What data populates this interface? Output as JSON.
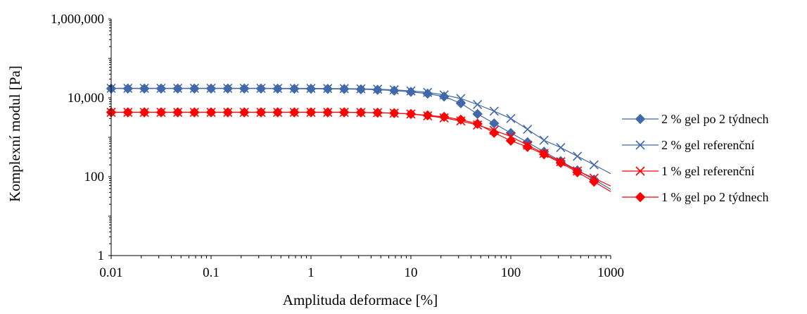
{
  "chart_data": {
    "type": "line",
    "x_scale": "log",
    "y_scale": "log",
    "xlabel": "Amplituda deformace [%]",
    "ylabel": "Komplexní modul [Pa]",
    "xlim": [
      0.01,
      1000
    ],
    "ylim": [
      1,
      1000000
    ],
    "x_ticks": [
      0.01,
      0.1,
      1,
      10,
      100,
      1000
    ],
    "x_tick_labels": [
      "0.01",
      "0.1",
      "1",
      "10",
      "100",
      "1000"
    ],
    "y_ticks": [
      1,
      100,
      10000,
      1000000
    ],
    "y_tick_labels": [
      "1",
      "100",
      "10,000",
      "1,000,000"
    ],
    "grid": false,
    "legend_position": "right",
    "x": [
      0.01,
      0.0147,
      0.0215,
      0.0316,
      0.0464,
      0.0681,
      0.1,
      0.147,
      0.215,
      0.316,
      0.464,
      0.681,
      1,
      1.47,
      2.15,
      3.16,
      4.64,
      6.81,
      10,
      14.7,
      21.5,
      31.6,
      46.4,
      68.1,
      100,
      147,
      215,
      316,
      464,
      681,
      1000
    ],
    "series": [
      {
        "name": "2 % gel po 2 týdnech",
        "color": "#4169aa",
        "marker": "diamond",
        "values": [
          17200,
          17200,
          17200,
          17200,
          17200,
          17200,
          17200,
          17200,
          17200,
          17200,
          17100,
          17000,
          17000,
          16900,
          16800,
          16500,
          16000,
          15300,
          14200,
          12800,
          10800,
          7300,
          3900,
          2250,
          1280,
          750,
          430,
          250,
          145,
          85,
          48
        ]
      },
      {
        "name": "2 % gel referenční",
        "color": "#4169aa",
        "marker": "x",
        "values": [
          17500,
          17500,
          17500,
          17500,
          17500,
          17500,
          17500,
          17500,
          17500,
          17500,
          17400,
          17400,
          17400,
          17300,
          17200,
          17000,
          16600,
          16000,
          15000,
          13800,
          11900,
          9600,
          6800,
          4600,
          3000,
          1590,
          840,
          550,
          330,
          200,
          120
        ]
      },
      {
        "name": "1 % gel referenční",
        "color": "#ff0000",
        "marker": "x",
        "values": [
          4300,
          4300,
          4300,
          4300,
          4300,
          4300,
          4300,
          4300,
          4300,
          4300,
          4300,
          4300,
          4300,
          4300,
          4300,
          4250,
          4200,
          4100,
          3900,
          3500,
          3100,
          2600,
          2050,
          1500,
          1050,
          630,
          390,
          240,
          140,
          92,
          58
        ]
      },
      {
        "name": "1 % gel po 2 týdnech",
        "color": "#ff0000",
        "marker": "diamond",
        "values": [
          4300,
          4300,
          4300,
          4300,
          4300,
          4300,
          4300,
          4300,
          4300,
          4300,
          4300,
          4300,
          4300,
          4300,
          4300,
          4250,
          4200,
          4100,
          3900,
          3600,
          3300,
          2800,
          2200,
          1300,
          820,
          570,
          370,
          225,
          130,
          75,
          42
        ]
      }
    ]
  }
}
